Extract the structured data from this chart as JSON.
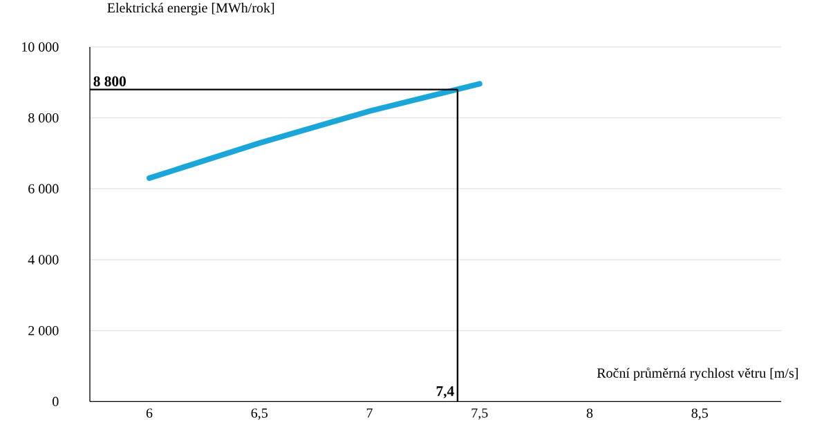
{
  "chart_data": {
    "type": "line",
    "ylabel": "Elektrická energie [MWh/rok]",
    "xlabel": "Roční průměrná rychlost větru [m/s]",
    "x": [
      6,
      6.5,
      7,
      7.5
    ],
    "series": [
      {
        "color": "#1ba6da",
        "values": [
          6300,
          7290,
          8190,
          8960
        ]
      }
    ],
    "xlim": [
      5.73,
      8.87
    ],
    "xticks": [
      6,
      {
        "value": 6.5,
        "label": "6,5"
      },
      7,
      {
        "value": 7.5,
        "label": "7,5"
      },
      8,
      {
        "value": 8.5,
        "label": "8,5"
      }
    ],
    "ylim": [
      0,
      10000
    ],
    "yticks": [
      0,
      {
        "value": 2000,
        "label": "2 000"
      },
      {
        "value": 4000,
        "label": "4 000"
      },
      {
        "value": 6000,
        "label": "6 000"
      },
      {
        "value": 8000,
        "label": "8 000"
      },
      {
        "value": 10000,
        "label": "10 000"
      }
    ],
    "grid": "y",
    "ref_lines": [
      {
        "axis": "y",
        "value": 8800,
        "label": "8 800",
        "color": "#000000"
      },
      {
        "axis": "x",
        "value": 7.4,
        "label": "7,4",
        "color": "#000000"
      }
    ]
  }
}
